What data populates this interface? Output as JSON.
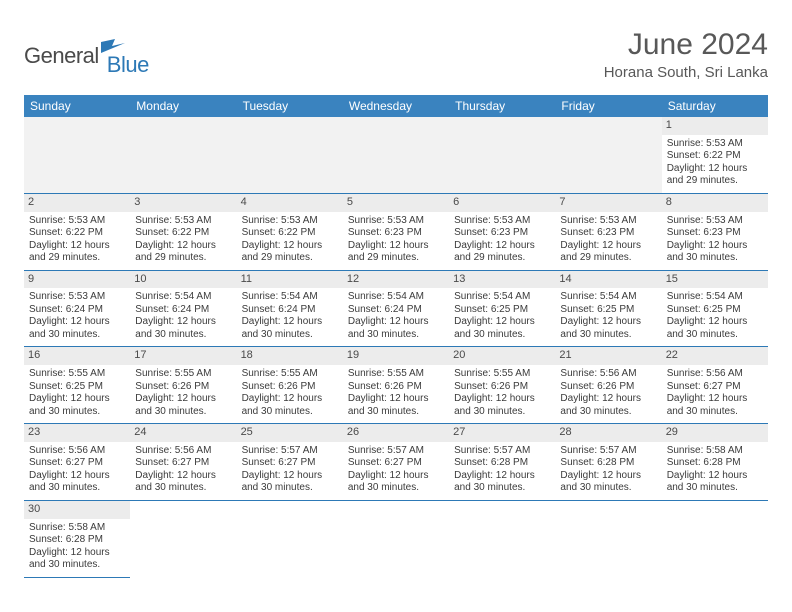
{
  "logo": {
    "part1": "General",
    "part2": "Blue"
  },
  "title": "June 2024",
  "location": "Horana South, Sri Lanka",
  "colors": {
    "header_bg": "#3a83bf",
    "header_text": "#ffffff",
    "border": "#2d79b6",
    "daynum_bg": "#ececec",
    "text": "#3b3b3b",
    "title_text": "#585858"
  },
  "day_headers": [
    "Sunday",
    "Monday",
    "Tuesday",
    "Wednesday",
    "Thursday",
    "Friday",
    "Saturday"
  ],
  "weeks": [
    [
      null,
      null,
      null,
      null,
      null,
      null,
      {
        "n": "1",
        "sr": "5:53 AM",
        "ss": "6:22 PM",
        "dl": "12 hours and 29 minutes."
      }
    ],
    [
      {
        "n": "2",
        "sr": "5:53 AM",
        "ss": "6:22 PM",
        "dl": "12 hours and 29 minutes."
      },
      {
        "n": "3",
        "sr": "5:53 AM",
        "ss": "6:22 PM",
        "dl": "12 hours and 29 minutes."
      },
      {
        "n": "4",
        "sr": "5:53 AM",
        "ss": "6:22 PM",
        "dl": "12 hours and 29 minutes."
      },
      {
        "n": "5",
        "sr": "5:53 AM",
        "ss": "6:23 PM",
        "dl": "12 hours and 29 minutes."
      },
      {
        "n": "6",
        "sr": "5:53 AM",
        "ss": "6:23 PM",
        "dl": "12 hours and 29 minutes."
      },
      {
        "n": "7",
        "sr": "5:53 AM",
        "ss": "6:23 PM",
        "dl": "12 hours and 29 minutes."
      },
      {
        "n": "8",
        "sr": "5:53 AM",
        "ss": "6:23 PM",
        "dl": "12 hours and 30 minutes."
      }
    ],
    [
      {
        "n": "9",
        "sr": "5:53 AM",
        "ss": "6:24 PM",
        "dl": "12 hours and 30 minutes."
      },
      {
        "n": "10",
        "sr": "5:54 AM",
        "ss": "6:24 PM",
        "dl": "12 hours and 30 minutes."
      },
      {
        "n": "11",
        "sr": "5:54 AM",
        "ss": "6:24 PM",
        "dl": "12 hours and 30 minutes."
      },
      {
        "n": "12",
        "sr": "5:54 AM",
        "ss": "6:24 PM",
        "dl": "12 hours and 30 minutes."
      },
      {
        "n": "13",
        "sr": "5:54 AM",
        "ss": "6:25 PM",
        "dl": "12 hours and 30 minutes."
      },
      {
        "n": "14",
        "sr": "5:54 AM",
        "ss": "6:25 PM",
        "dl": "12 hours and 30 minutes."
      },
      {
        "n": "15",
        "sr": "5:54 AM",
        "ss": "6:25 PM",
        "dl": "12 hours and 30 minutes."
      }
    ],
    [
      {
        "n": "16",
        "sr": "5:55 AM",
        "ss": "6:25 PM",
        "dl": "12 hours and 30 minutes."
      },
      {
        "n": "17",
        "sr": "5:55 AM",
        "ss": "6:26 PM",
        "dl": "12 hours and 30 minutes."
      },
      {
        "n": "18",
        "sr": "5:55 AM",
        "ss": "6:26 PM",
        "dl": "12 hours and 30 minutes."
      },
      {
        "n": "19",
        "sr": "5:55 AM",
        "ss": "6:26 PM",
        "dl": "12 hours and 30 minutes."
      },
      {
        "n": "20",
        "sr": "5:55 AM",
        "ss": "6:26 PM",
        "dl": "12 hours and 30 minutes."
      },
      {
        "n": "21",
        "sr": "5:56 AM",
        "ss": "6:26 PM",
        "dl": "12 hours and 30 minutes."
      },
      {
        "n": "22",
        "sr": "5:56 AM",
        "ss": "6:27 PM",
        "dl": "12 hours and 30 minutes."
      }
    ],
    [
      {
        "n": "23",
        "sr": "5:56 AM",
        "ss": "6:27 PM",
        "dl": "12 hours and 30 minutes."
      },
      {
        "n": "24",
        "sr": "5:56 AM",
        "ss": "6:27 PM",
        "dl": "12 hours and 30 minutes."
      },
      {
        "n": "25",
        "sr": "5:57 AM",
        "ss": "6:27 PM",
        "dl": "12 hours and 30 minutes."
      },
      {
        "n": "26",
        "sr": "5:57 AM",
        "ss": "6:27 PM",
        "dl": "12 hours and 30 minutes."
      },
      {
        "n": "27",
        "sr": "5:57 AM",
        "ss": "6:28 PM",
        "dl": "12 hours and 30 minutes."
      },
      {
        "n": "28",
        "sr": "5:57 AM",
        "ss": "6:28 PM",
        "dl": "12 hours and 30 minutes."
      },
      {
        "n": "29",
        "sr": "5:58 AM",
        "ss": "6:28 PM",
        "dl": "12 hours and 30 minutes."
      }
    ],
    [
      {
        "n": "30",
        "sr": "5:58 AM",
        "ss": "6:28 PM",
        "dl": "12 hours and 30 minutes."
      },
      null,
      null,
      null,
      null,
      null,
      null
    ]
  ],
  "labels": {
    "sunrise": "Sunrise: ",
    "sunset": "Sunset: ",
    "daylight": "Daylight: "
  }
}
